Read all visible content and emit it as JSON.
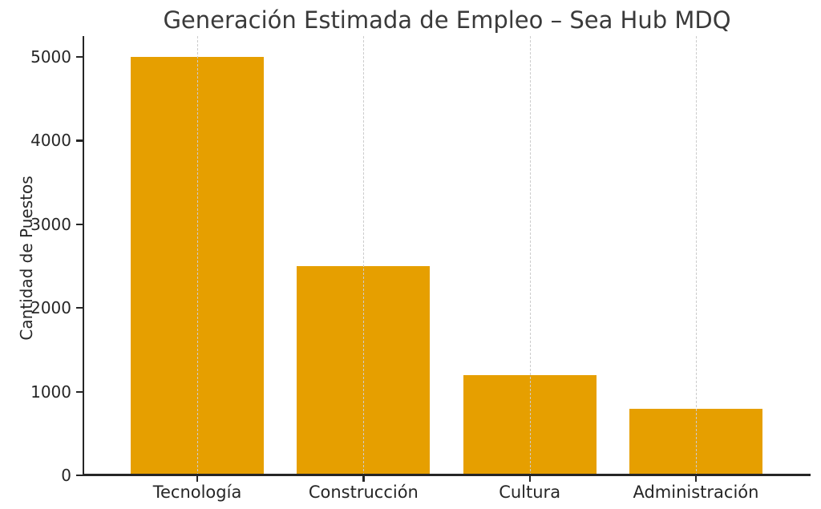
{
  "chart_data": {
    "type": "bar",
    "title": "Generación Estimada de Empleo – Sea Hub MDQ",
    "xlabel": "",
    "ylabel": "Cantidad de Puestos",
    "categories": [
      "Tecnología",
      "Construcción",
      "Cultura",
      "Administración"
    ],
    "values": [
      5000,
      2500,
      1200,
      800
    ],
    "yticks": [
      0,
      1000,
      2000,
      3000,
      4000,
      5000
    ],
    "ylim": [
      0,
      5250
    ],
    "bar_width_fraction": 0.8,
    "grid": "vertical-dashed-at-category-centers",
    "legend_position": "none",
    "colors": {
      "bar": "#E69F00",
      "grid": "#cccccc",
      "axis": "#262626",
      "title_text": "#3a3a3a",
      "tick_text": "#262626"
    }
  }
}
